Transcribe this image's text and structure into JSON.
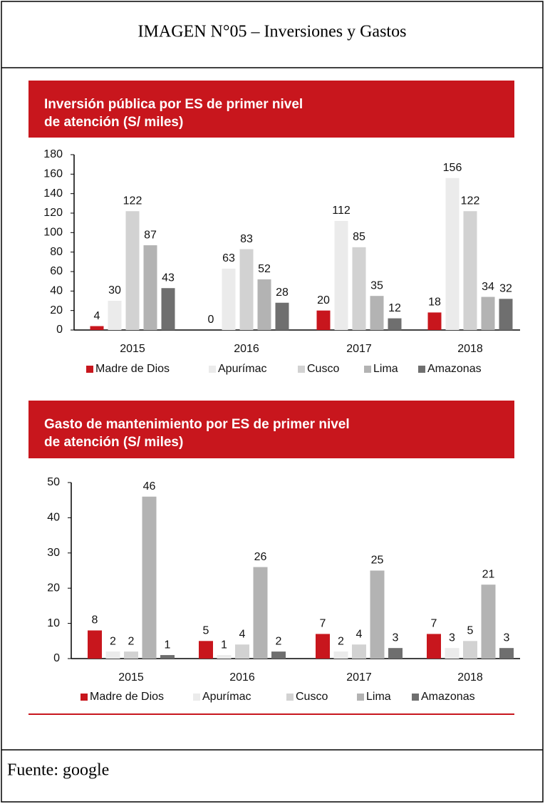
{
  "header": {
    "title": "IMAGEN N°05 – Inversiones y Gastos"
  },
  "chart_data": [
    {
      "type": "bar",
      "title": [
        "Inversión pública por ES de primer nivel",
        "de atención (S/ miles)"
      ],
      "categories": [
        "2015",
        "2016",
        "2017",
        "2018"
      ],
      "series": [
        {
          "name": "Madre de Dios",
          "color": "#c8161d",
          "values": [
            4,
            0,
            20,
            18
          ]
        },
        {
          "name": "Apurímac",
          "color": "#ebebeb",
          "values": [
            30,
            63,
            112,
            156
          ]
        },
        {
          "name": "Cusco",
          "color": "#d2d2d2",
          "values": [
            122,
            83,
            85,
            122
          ]
        },
        {
          "name": "Lima",
          "color": "#b3b3b3",
          "values": [
            87,
            52,
            35,
            34
          ]
        },
        {
          "name": "Amazonas",
          "color": "#6f6f6f",
          "values": [
            43,
            28,
            12,
            32
          ]
        }
      ],
      "ylim": [
        0,
        180
      ],
      "yticks": [
        0,
        20,
        40,
        60,
        80,
        100,
        120,
        140,
        160,
        180
      ],
      "grid": false,
      "legend": "bottom"
    },
    {
      "type": "bar",
      "title": [
        "Gasto de mantenimiento por ES de primer nivel",
        "de atención (S/ miles)"
      ],
      "categories": [
        "2015",
        "2016",
        "2017",
        "2018"
      ],
      "series": [
        {
          "name": "Madre de Dios",
          "color": "#c8161d",
          "values": [
            8,
            5,
            7,
            7
          ]
        },
        {
          "name": "Apurímac",
          "color": "#ebebeb",
          "values": [
            2,
            1,
            2,
            3
          ]
        },
        {
          "name": "Cusco",
          "color": "#d2d2d2",
          "values": [
            2,
            4,
            4,
            5
          ]
        },
        {
          "name": "Lima",
          "color": "#b3b3b3",
          "values": [
            46,
            26,
            25,
            21
          ]
        },
        {
          "name": "Amazonas",
          "color": "#6f6f6f",
          "values": [
            1,
            2,
            3,
            3
          ]
        }
      ],
      "ylim": [
        0,
        50
      ],
      "yticks": [
        0,
        10,
        20,
        30,
        40,
        50
      ],
      "grid": false,
      "legend": "bottom"
    }
  ],
  "footer": {
    "source": "Fuente: google"
  }
}
